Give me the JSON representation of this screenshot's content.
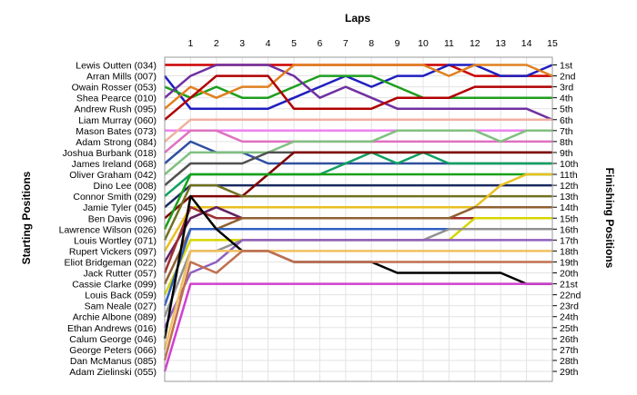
{
  "chart_data": {
    "type": "line",
    "title": "Laps",
    "xlabel": "Laps",
    "ylabel_left": "Starting Positions",
    "ylabel_right": "Finishing Positions",
    "x": [
      0,
      1,
      2,
      3,
      4,
      5,
      6,
      7,
      8,
      9,
      10,
      11,
      12,
      13,
      14,
      15
    ],
    "x_ticks": [
      1,
      2,
      3,
      4,
      5,
      6,
      7,
      8,
      9,
      10,
      11,
      12,
      13,
      14,
      15
    ],
    "ylim": [
      1,
      29
    ],
    "grid": true,
    "drivers": [
      "Lewis Outten (034)",
      "Arran Mills (007)",
      "Owain Rosser (053)",
      "Shea Pearce (010)",
      "Andrew Rush (095)",
      "Liam Murray (060)",
      "Mason Bates (073)",
      "Adam Strong (084)",
      "Joshua Burbank (018)",
      "James Ireland (068)",
      "Oliver Graham (042)",
      "Dino Lee (008)",
      "Connor Smith (029)",
      "Jamie Tyler (045)",
      "Ben Davis (096)",
      "Lawrence Wilson (026)",
      "Louis Wortley (071)",
      "Rupert Vickers (097)",
      "Eliot Bridgeman (022)",
      "Jack Rutter (057)",
      "Cassie Clarke (099)",
      "Louis Back (059)",
      "Sam Neale (027)",
      "Archie Albone (089)",
      "Ethan Andrews (016)",
      "Calum George (046)",
      "George Peters (066)",
      "Dan McManus (085)",
      "Adam Zielinski (055)"
    ],
    "finishing_positions": [
      "1st",
      "2nd",
      "3rd",
      "4th",
      "5th",
      "6th",
      "7th",
      "8th",
      "9th",
      "10th",
      "11th",
      "12th",
      "13th",
      "14th",
      "15th",
      "16th",
      "17th",
      "18th",
      "19th",
      "20th",
      "21st",
      "22nd",
      "23rd",
      "24th",
      "25th",
      "26th",
      "27th",
      "28th",
      "29th"
    ],
    "series": [
      {
        "color": "#cc0000",
        "values": [
          1,
          1,
          1,
          1,
          1,
          1,
          1,
          1,
          1,
          1,
          1,
          1,
          2,
          2,
          2,
          2
        ]
      },
      {
        "color": "#1f1fbf",
        "values": [
          2,
          5,
          5,
          5,
          5,
          4,
          3,
          2,
          3,
          2,
          2,
          1,
          1,
          2,
          2,
          1
        ]
      },
      {
        "color": "#1e9e1e",
        "values": [
          3,
          4,
          3,
          4,
          4,
          3,
          2,
          2,
          2,
          3,
          4,
          4,
          4,
          4,
          4,
          4
        ]
      },
      {
        "color": "#7030a0",
        "values": [
          4,
          2,
          1,
          1,
          1,
          2,
          4,
          3,
          4,
          5,
          5,
          5,
          5,
          5,
          5,
          6
        ]
      },
      {
        "color": "#e08020",
        "values": [
          5,
          3,
          4,
          3,
          3,
          1,
          1,
          1,
          1,
          1,
          1,
          2,
          1,
          1,
          1,
          2
        ]
      },
      {
        "color": "#b00000",
        "values": [
          6,
          4,
          2,
          2,
          2,
          5,
          5,
          5,
          5,
          4,
          4,
          4,
          3,
          3,
          3,
          3
        ]
      },
      {
        "color": "#ee82ee",
        "values": [
          7,
          7,
          7,
          7,
          7,
          7,
          7,
          7,
          7,
          7,
          7,
          7,
          7,
          7,
          7,
          7
        ]
      },
      {
        "color": "#f0b0a0",
        "values": [
          8,
          6,
          6,
          6,
          6,
          6,
          6,
          6,
          6,
          6,
          6,
          6,
          6,
          6,
          6,
          6
        ]
      },
      {
        "color": "#e070c0",
        "values": [
          9,
          7,
          7,
          8,
          8,
          8,
          8,
          8,
          8,
          8,
          8,
          8,
          8,
          8,
          8,
          8
        ]
      },
      {
        "color": "#3050a0",
        "values": [
          10,
          8,
          9,
          9,
          10,
          10,
          10,
          10,
          10,
          10,
          10,
          10,
          10,
          10,
          10,
          10
        ]
      },
      {
        "color": "#80c080",
        "values": [
          11,
          9,
          9,
          9,
          9,
          8,
          8,
          8,
          8,
          7,
          7,
          7,
          7,
          8,
          7,
          7
        ]
      },
      {
        "color": "#505050",
        "values": [
          12,
          10,
          10,
          10,
          9,
          9,
          9,
          9,
          9,
          9,
          9,
          9,
          9,
          9,
          9,
          9
        ]
      },
      {
        "color": "#10a060",
        "values": [
          13,
          11,
          11,
          11,
          11,
          11,
          11,
          10,
          9,
          10,
          9,
          10,
          10,
          10,
          10,
          10
        ]
      },
      {
        "color": "#1a2a60",
        "values": [
          14,
          12,
          12,
          12,
          12,
          12,
          12,
          12,
          12,
          12,
          12,
          12,
          12,
          12,
          12,
          12
        ]
      },
      {
        "color": "#800000",
        "values": [
          15,
          13,
          13,
          13,
          11,
          9,
          9,
          9,
          9,
          9,
          9,
          9,
          9,
          9,
          9,
          9
        ]
      },
      {
        "color": "#18a018",
        "values": [
          16,
          11,
          11,
          11,
          11,
          11,
          11,
          11,
          11,
          11,
          11,
          11,
          11,
          11,
          11,
          11
        ]
      },
      {
        "color": "#707020",
        "values": [
          17,
          12,
          12,
          13,
          13,
          13,
          13,
          13,
          13,
          13,
          13,
          13,
          13,
          13,
          13,
          13
        ]
      },
      {
        "color": "#e8c020",
        "values": [
          18,
          14,
          14,
          14,
          14,
          14,
          14,
          14,
          14,
          14,
          14,
          14,
          14,
          12,
          11,
          11
        ]
      },
      {
        "color": "#602060",
        "values": [
          19,
          15,
          14,
          15,
          15,
          15,
          15,
          15,
          15,
          15,
          15,
          15,
          15,
          15,
          15,
          15
        ]
      },
      {
        "color": "#a03030",
        "values": [
          20,
          14,
          15,
          15,
          15,
          15,
          15,
          15,
          15,
          15,
          15,
          15,
          15,
          15,
          15,
          15
        ]
      },
      {
        "color": "#906030",
        "values": [
          21,
          16,
          16,
          15,
          15,
          15,
          15,
          15,
          15,
          15,
          15,
          15,
          14,
          14,
          14,
          14
        ]
      },
      {
        "color": "#d6d600",
        "values": [
          22,
          17,
          17,
          17,
          17,
          17,
          17,
          17,
          17,
          17,
          17,
          17,
          15,
          15,
          15,
          15
        ]
      },
      {
        "color": "#3060c0",
        "values": [
          23,
          16,
          16,
          16,
          16,
          16,
          16,
          16,
          16,
          16,
          16,
          16,
          16,
          16,
          16,
          16
        ]
      },
      {
        "color": "#909090",
        "values": [
          24,
          18,
          18,
          17,
          17,
          17,
          17,
          17,
          17,
          17,
          17,
          16,
          16,
          16,
          16,
          16
        ]
      },
      {
        "color": "#9060c0",
        "values": [
          25,
          20,
          19,
          17,
          17,
          17,
          17,
          17,
          17,
          17,
          17,
          17,
          17,
          17,
          17,
          17
        ]
      },
      {
        "color": "#000000",
        "values": [
          26,
          13,
          16,
          18,
          18,
          19,
          19,
          19,
          19,
          20,
          20,
          20,
          20,
          20,
          21,
          21
        ]
      },
      {
        "color": "#f0c060",
        "values": [
          27,
          18,
          18,
          18,
          18,
          18,
          18,
          18,
          18,
          18,
          18,
          18,
          18,
          18,
          18,
          18
        ]
      },
      {
        "color": "#c07050",
        "values": [
          28,
          19,
          20,
          18,
          18,
          19,
          19,
          19,
          19,
          19,
          19,
          19,
          19,
          19,
          19,
          19
        ]
      },
      {
        "color": "#d040d0",
        "values": [
          29,
          21,
          21,
          21,
          21,
          21,
          21,
          21,
          21,
          21,
          21,
          21,
          21,
          21,
          21,
          21
        ]
      }
    ]
  }
}
